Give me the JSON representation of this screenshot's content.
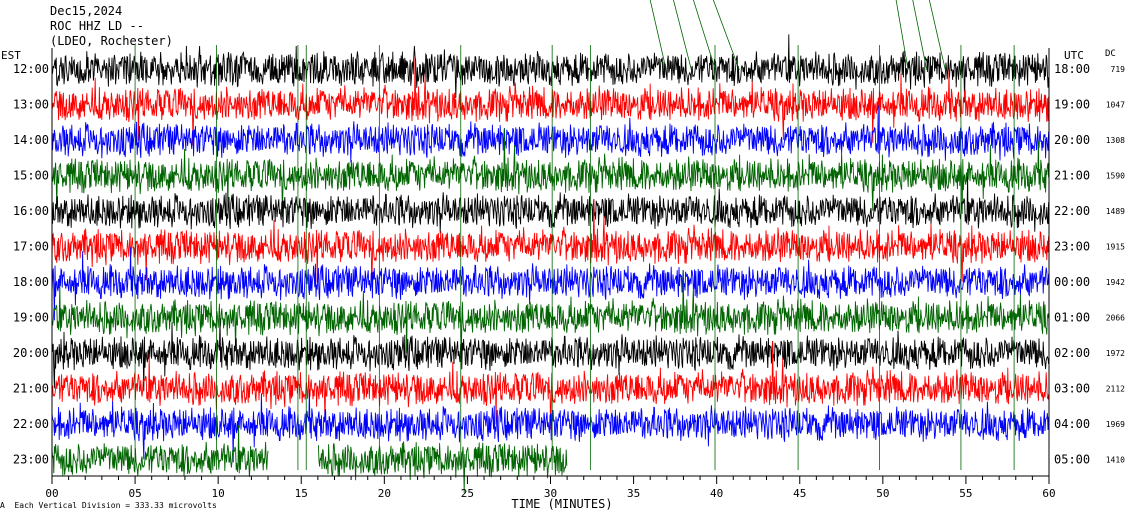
{
  "header": {
    "date": "Dec15,2024",
    "station": "ROC HHZ LD --",
    "location": "(LDEO, Rochester)"
  },
  "left_axis_label": "EST",
  "right_axis_label": "UTC",
  "dc_label": "DC",
  "footer_text": "Each Vertical Division = 333.33 microvolts",
  "footer_mark": "A",
  "colors": {
    "trace_cycle": [
      "#000000",
      "#ff0000",
      "#0000ff",
      "#006400"
    ],
    "markers": "#006400",
    "axis": "#000000",
    "background": "#ffffff"
  },
  "chart_data": {
    "type": "line",
    "title": "",
    "xlabel": "TIME (MINUTES)",
    "ylabel": "",
    "xlim": [
      0,
      60
    ],
    "x_ticks": [
      "00",
      "05",
      "10",
      "15",
      "20",
      "25",
      "30",
      "35",
      "40",
      "45",
      "50",
      "55",
      "60"
    ],
    "x_tick_values": [
      0,
      5,
      10,
      15,
      20,
      25,
      30,
      35,
      40,
      45,
      50,
      55,
      60
    ],
    "rows": [
      {
        "est": "12:00",
        "utc": "18:00",
        "dc": "719",
        "color": "#000000"
      },
      {
        "est": "13:00",
        "utc": "19:00",
        "dc": "1047",
        "color": "#ff0000"
      },
      {
        "est": "14:00",
        "utc": "20:00",
        "dc": "1308",
        "color": "#0000ff"
      },
      {
        "est": "15:00",
        "utc": "21:00",
        "dc": "1590",
        "color": "#006400"
      },
      {
        "est": "16:00",
        "utc": "22:00",
        "dc": "1489",
        "color": "#000000"
      },
      {
        "est": "17:00",
        "utc": "23:00",
        "dc": "1915",
        "color": "#ff0000"
      },
      {
        "est": "18:00",
        "utc": "00:00",
        "dc": "1942",
        "color": "#0000ff"
      },
      {
        "est": "19:00",
        "utc": "01:00",
        "dc": "2066",
        "color": "#006400"
      },
      {
        "est": "20:00",
        "utc": "02:00",
        "dc": "1972",
        "color": "#000000"
      },
      {
        "est": "21:00",
        "utc": "03:00",
        "dc": "2112",
        "color": "#ff0000"
      },
      {
        "est": "22:00",
        "utc": "04:00",
        "dc": "1969",
        "color": "#0000ff"
      },
      {
        "est": "23:00",
        "utc": "05:00",
        "dc": "1410",
        "color": "#006400"
      }
    ],
    "last_row_gaps_minutes": [
      [
        13,
        16
      ],
      [
        31,
        60
      ]
    ],
    "grid": false,
    "legend": "none"
  }
}
